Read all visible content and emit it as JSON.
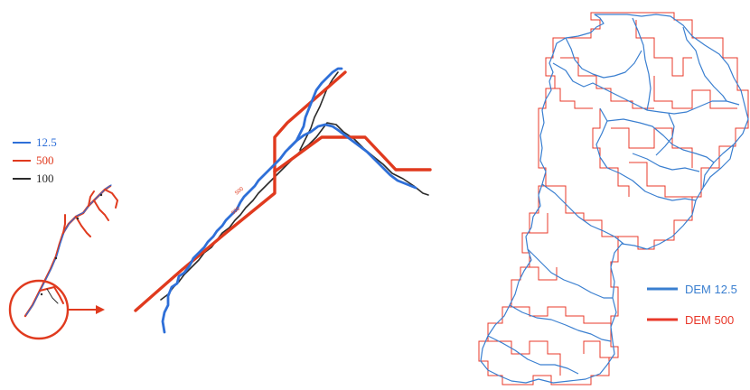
{
  "colors": {
    "blue": "#2e6fd8",
    "red": "#e03a1e",
    "black": "#2b2b2b",
    "map_blue": "#3a7fd0",
    "map_red": "#e8382a"
  },
  "left_legend": {
    "items": [
      {
        "label": "12.5",
        "color": "#2e6fd8"
      },
      {
        "label": "500",
        "color": "#e03a1e"
      },
      {
        "label": "100",
        "color": "#2b2b2b"
      }
    ]
  },
  "zoom_labels": {
    "a": "500",
    "b": "500"
  },
  "right_legend": {
    "items": [
      {
        "label": "DEM 12.5",
        "color": "#3a7fd0"
      },
      {
        "label": "DEM 500",
        "color": "#e8382a"
      }
    ]
  }
}
